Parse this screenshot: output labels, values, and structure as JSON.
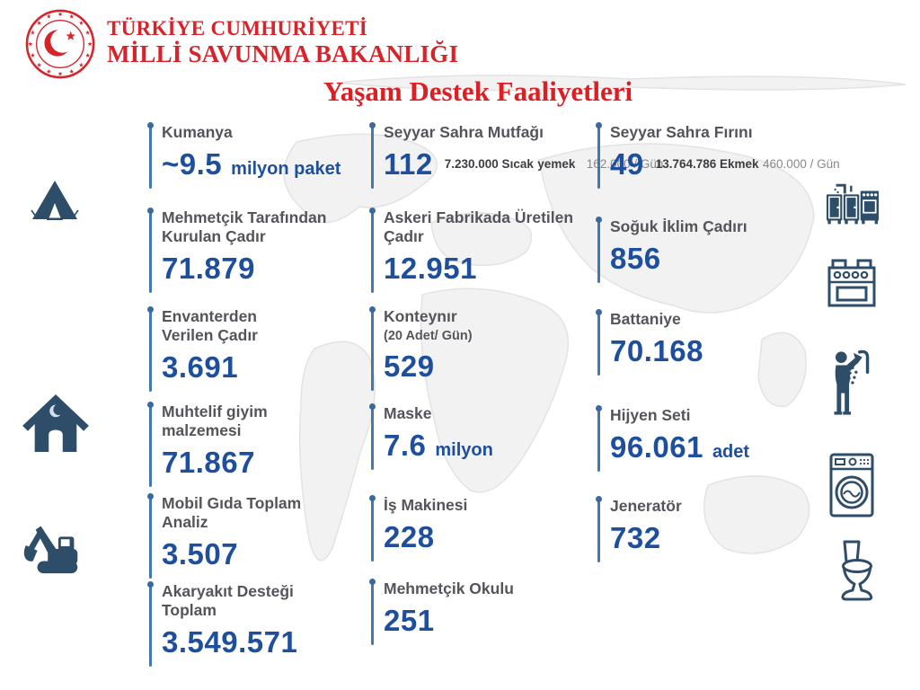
{
  "header": {
    "ministry_line1": "TÜRKİYE CUMHURİYETİ",
    "ministry_line2": "MİLLİ SAVUNMA BAKANLIĞI",
    "title": "Yaşam Destek Faaliyetleri"
  },
  "columns": [
    {
      "items": [
        {
          "label": "Kumanya",
          "value": "~9.5",
          "unit": "milyon paket"
        },
        {
          "label": "Mehmetçik Tarafından\nKurulan Çadır",
          "value": "71.879"
        },
        {
          "label": "Envanterden\nVerilen Çadır",
          "value": "3.691"
        },
        {
          "label": "Muhtelif giyim malzemesi",
          "value": "71.867"
        },
        {
          "label": "Mobil Gıda Toplam Analiz",
          "value": "3.507"
        },
        {
          "label": "Akaryakıt Desteği Toplam",
          "value": "3.549.571"
        }
      ]
    },
    {
      "items": [
        {
          "label": "Seyyar Sahra Mutfağı",
          "value": "112",
          "side_line1": "7.230.000 Sıcak",
          "side_line2_bold": "yemek",
          "side_line2": "162.000 / Gün"
        },
        {
          "label": "Askeri Fabrikada Üretilen\nÇadır",
          "value": "12.951"
        },
        {
          "label": "Konteynır",
          "sub": "(20 Adet/ Gün)",
          "value": "529"
        },
        {
          "label": "Maske",
          "value": "7.6",
          "unit": "milyon"
        },
        {
          "label": "İş Makinesi",
          "value": "228"
        },
        {
          "label": "Mehmetçik Okulu",
          "value": "251"
        }
      ]
    },
    {
      "items": [
        {
          "label": "Seyyar Sahra Fırını",
          "value": "49",
          "side_line1": "13.764.786 Ekmek",
          "side_line2": "460.000 / Gün"
        },
        {
          "label": "Soğuk İklim Çadırı",
          "value": "856"
        },
        {
          "label": "Battaniye",
          "value": "70.168"
        },
        {
          "label": "Hijyen Seti",
          "value": "96.061",
          "unit": "adet"
        },
        {
          "label": "Jeneratör",
          "value": "732"
        }
      ]
    }
  ],
  "icons": {
    "left": [
      "tent-icon",
      "crescent-tent-icon",
      "excavator-icon"
    ],
    "right": [
      "kitchen-unit-icon",
      "oven-icon",
      "shower-icon",
      "washing-machine-icon",
      "toilet-icon"
    ]
  },
  "colors": {
    "brand_red": "#d7242b",
    "value_blue": "#1e4f9d",
    "pin_blue": "#4478ac",
    "label_gray": "#54555a",
    "icon_navy": "#2e4d69"
  },
  "chart_data": {
    "type": "table",
    "title": "Yaşam Destek Faaliyetleri",
    "categories": [
      "Kumanya (milyon paket)",
      "Mehmetçik Tarafından Kurulan Çadır",
      "Envanterden Verilen Çadır",
      "Muhtelif giyim malzemesi",
      "Mobil Gıda Toplam Analiz",
      "Akaryakıt Desteği Toplam",
      "Seyyar Sahra Mutfağı",
      "Sıcak yemek",
      "Sıcak yemek / Gün",
      "Askeri Fabrikada Üretilen Çadır",
      "Konteynır (20 Adet/ Gün)",
      "Maske (milyon)",
      "İş Makinesi",
      "Mehmetçik Okulu",
      "Seyyar Sahra Fırını",
      "Ekmek",
      "Ekmek / Gün",
      "Soğuk İklim Çadırı",
      "Battaniye",
      "Hijyen Seti (adet)",
      "Jeneratör"
    ],
    "values": [
      9.5,
      71879,
      3691,
      71867,
      3507,
      3549571,
      112,
      7230000,
      162000,
      12951,
      529,
      7.6,
      228,
      251,
      49,
      13764786,
      460000,
      856,
      70168,
      96061,
      732
    ]
  }
}
